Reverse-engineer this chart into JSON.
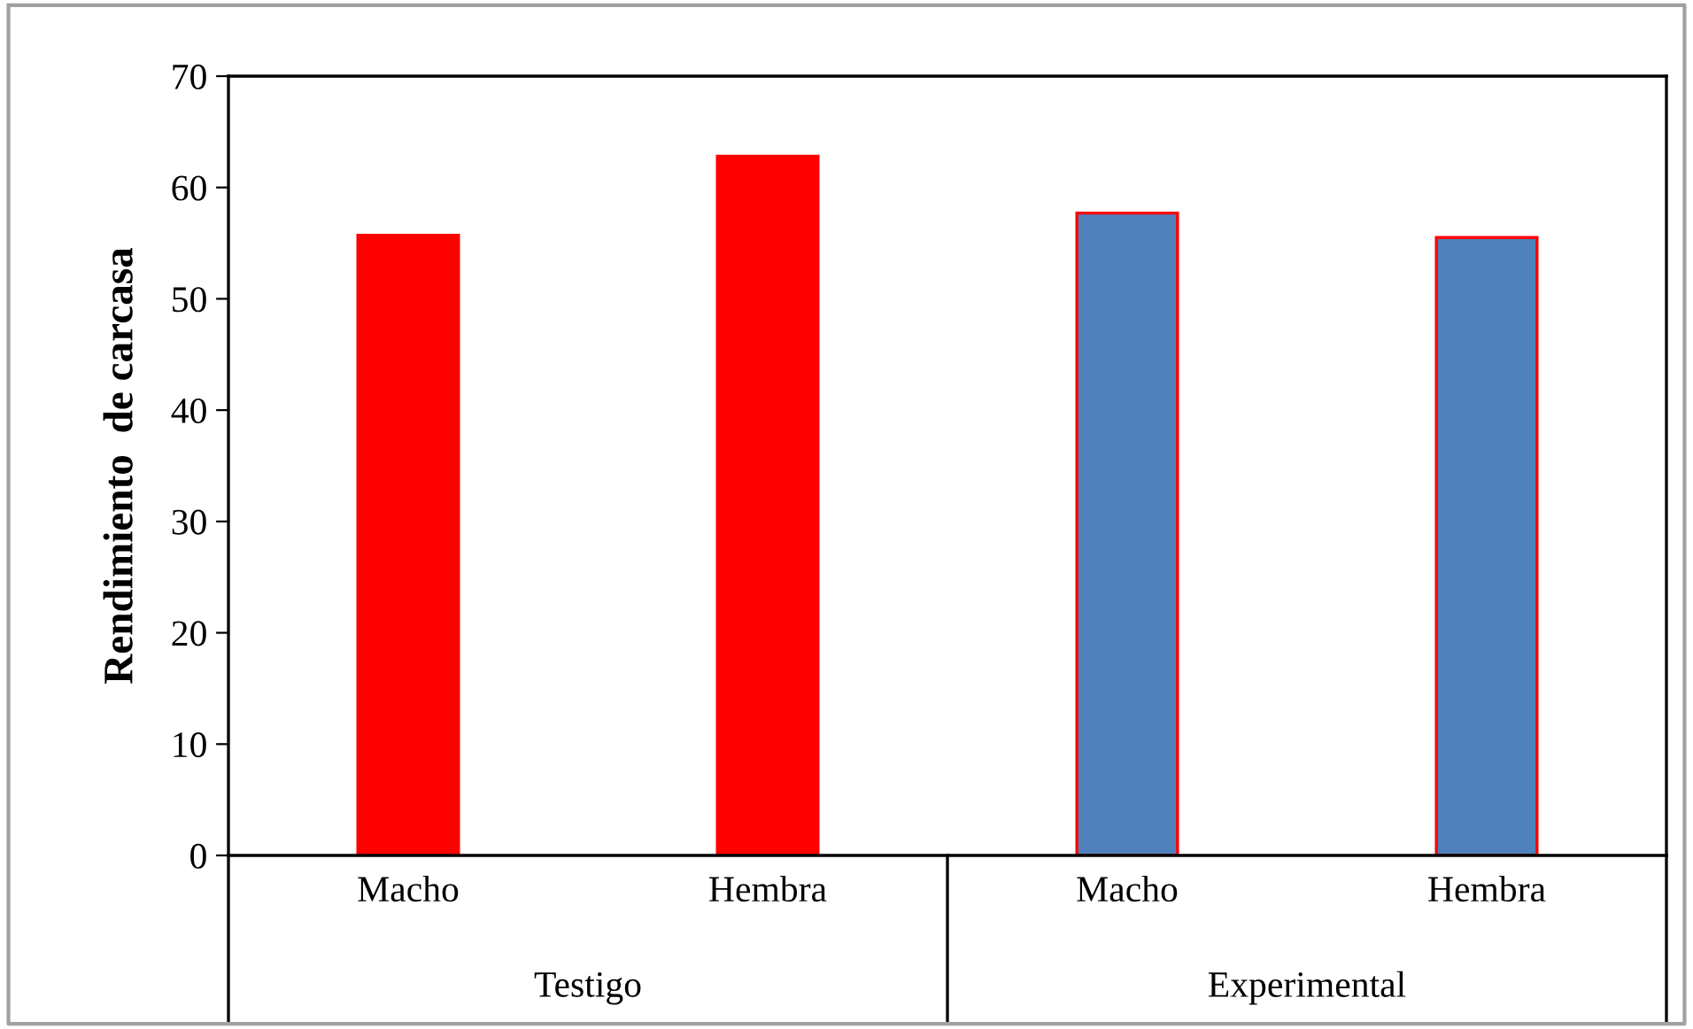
{
  "chart_data": {
    "type": "bar",
    "ylabel": "Rendimiento  de carcasa",
    "categories": [
      "Macho",
      "Hembra",
      "Macho",
      "Hembra"
    ],
    "values": [
      55.7,
      62.8,
      57.7,
      55.5
    ],
    "colors": [
      "#ff0000",
      "#ff0000",
      "#4f81bd",
      "#4f81bd"
    ],
    "annotations": [
      "Testigo",
      "Experimental"
    ],
    "ylim": [
      0,
      70
    ],
    "yticks": [
      0,
      10,
      20,
      30,
      40,
      50,
      60,
      70
    ],
    "grid": false
  }
}
